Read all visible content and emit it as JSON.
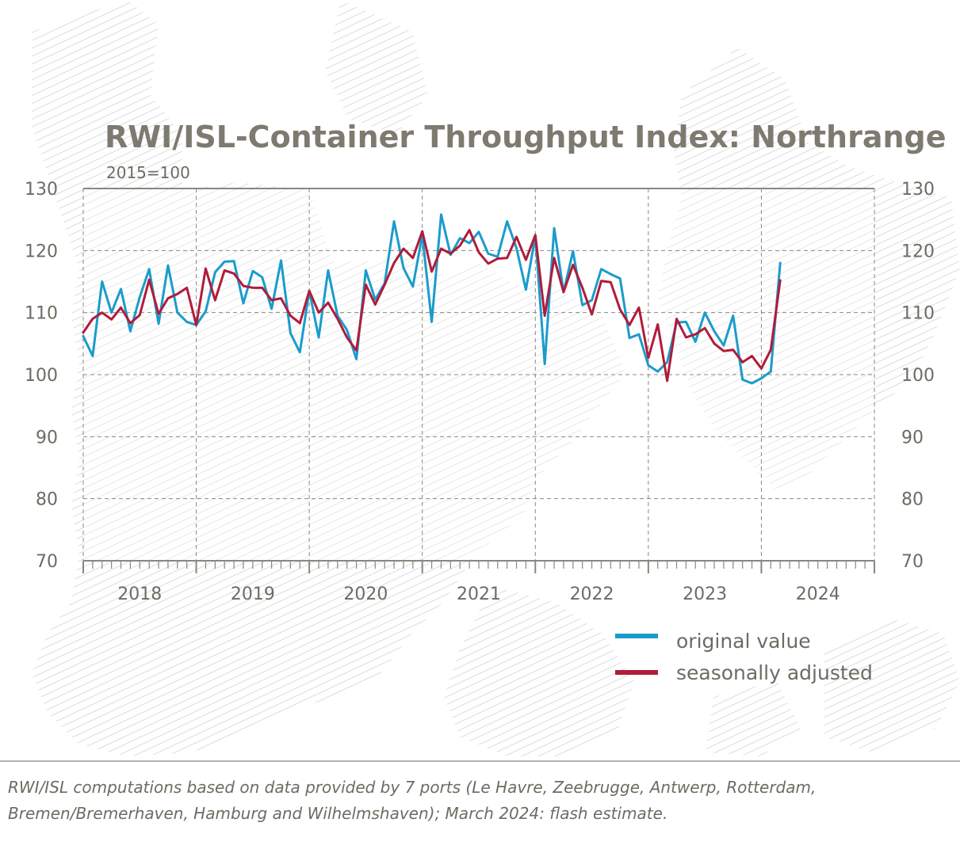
{
  "chart_data": {
    "type": "line",
    "title": "RWI/ISL-Container Throughput Index: Northrange",
    "subtitle": "2015=100",
    "ylim": [
      70,
      130
    ],
    "yticks": [
      70,
      80,
      90,
      100,
      110,
      120,
      130
    ],
    "year_labels": [
      "2018",
      "2019",
      "2020",
      "2021",
      "2022",
      "2023",
      "2024"
    ],
    "x_start": "2018-01",
    "grid": true,
    "legend_position": "bottom-right",
    "series": [
      {
        "name": "original value",
        "color": "#1a9ccb",
        "values": [
          106.2,
          103.0,
          115.0,
          110.0,
          113.8,
          107.0,
          112.5,
          117.0,
          108.2,
          117.6,
          110.0,
          108.5,
          108.0,
          110.2,
          116.5,
          118.2,
          118.3,
          111.5,
          116.7,
          115.7,
          110.6,
          118.4,
          106.7,
          103.6,
          113.5,
          106.0,
          116.8,
          109.5,
          107.2,
          102.5,
          116.8,
          112.1,
          114.7,
          124.7,
          117.2,
          114.2,
          122.5,
          108.5,
          125.8,
          119.3,
          122.0,
          121.2,
          123.0,
          119.5,
          119.0,
          124.7,
          120.4,
          113.7,
          122.3,
          101.7,
          123.6,
          113.3,
          119.9,
          111.2,
          112.0,
          117.0,
          116.2,
          115.5,
          105.9,
          106.5,
          101.5,
          100.5,
          102.0,
          108.4,
          108.5,
          105.3,
          110.0,
          107.0,
          104.7,
          109.5,
          99.2,
          98.6,
          99.4,
          100.5,
          118.0
        ]
      },
      {
        "name": "seasonally adjusted",
        "color": "#b01c3a",
        "values": [
          106.8,
          109.0,
          110.0,
          108.9,
          110.8,
          108.3,
          109.6,
          115.3,
          109.8,
          112.3,
          113.0,
          114.0,
          108.0,
          117.1,
          112.0,
          116.8,
          116.3,
          114.3,
          114.0,
          114.0,
          112.0,
          112.3,
          109.5,
          108.3,
          113.5,
          110.0,
          111.6,
          109.0,
          106.0,
          103.9,
          114.5,
          111.3,
          114.5,
          118.0,
          120.3,
          118.8,
          123.1,
          116.6,
          120.3,
          119.5,
          120.8,
          123.3,
          119.7,
          117.9,
          118.7,
          118.8,
          122.2,
          118.5,
          122.5,
          109.5,
          118.8,
          113.3,
          117.7,
          114.0,
          109.7,
          115.1,
          114.9,
          110.5,
          108.0,
          110.8,
          102.7,
          108.1,
          99.0,
          109.0,
          106.0,
          106.5,
          107.5,
          105.0,
          103.8,
          104.0,
          102.0,
          103.0,
          101.0,
          104.0,
          115.2
        ]
      }
    ]
  },
  "footnote": {
    "line1": "RWI/ISL computations based on data provided by 7 ports (Le Havre, Zeebrugge, Antwerp, Rotterdam,",
    "line2": "Bremen/Bremerhaven, Hamburg and Wilhelmshaven); March 2024: flash estimate."
  }
}
